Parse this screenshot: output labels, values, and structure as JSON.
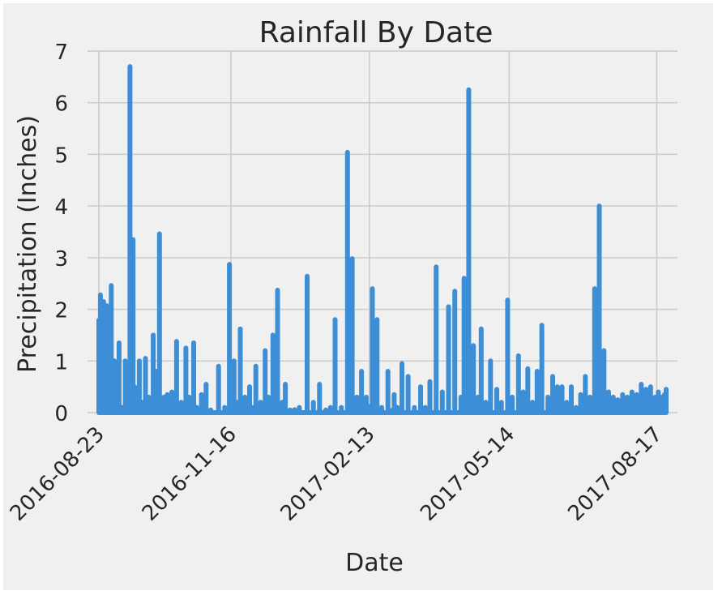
{
  "chart_data": {
    "type": "line",
    "title": "Rainfall By Date",
    "xlabel": "Date",
    "ylabel": "Precipitation (Inches)",
    "ylim": [
      0,
      7
    ],
    "xlim": [
      "2016-08-23",
      "2017-08-23"
    ],
    "yticks": [
      "0",
      "1",
      "2",
      "3",
      "4",
      "5",
      "6",
      "7"
    ],
    "xticks": [
      "2016-08-23",
      "2016-11-16",
      "2017-02-13",
      "2017-05-14",
      "2017-08-17"
    ],
    "grid": true,
    "legend": "none",
    "colors": {
      "line": "#3c8fd6",
      "background": "#f0f0f0",
      "grid": "#cbcbcb"
    },
    "x": [
      "2016-08-23",
      "2016-08-24",
      "2016-08-25",
      "2016-08-26",
      "2016-08-27",
      "2016-08-28",
      "2016-08-29",
      "2016-08-30",
      "2016-08-31",
      "2016-09-01",
      "2016-09-02",
      "2016-09-03",
      "2016-09-05",
      "2016-09-07",
      "2016-09-09",
      "2016-09-10",
      "2016-09-12",
      "2016-09-14",
      "2016-09-15",
      "2016-09-16",
      "2016-09-18",
      "2016-09-20",
      "2016-09-22",
      "2016-09-24",
      "2016-09-27",
      "2016-09-29",
      "2016-10-01",
      "2016-10-02",
      "2016-10-04",
      "2016-10-06",
      "2016-10-09",
      "2016-10-12",
      "2016-10-15",
      "2016-10-18",
      "2016-10-20",
      "2016-10-23",
      "2016-10-25",
      "2016-10-28",
      "2016-10-31",
      "2016-11-03",
      "2016-11-08",
      "2016-11-12",
      "2016-11-15",
      "2016-11-16",
      "2016-11-18",
      "2016-11-20",
      "2016-11-22",
      "2016-11-25",
      "2016-11-28",
      "2016-11-30",
      "2016-12-02",
      "2016-12-05",
      "2016-12-08",
      "2016-12-10",
      "2016-12-13",
      "2016-12-16",
      "2016-12-19",
      "2016-12-21",
      "2016-12-24",
      "2016-12-27",
      "2016-12-30",
      "2017-01-04",
      "2017-01-08",
      "2017-01-12",
      "2017-01-16",
      "2017-01-19",
      "2017-01-22",
      "2017-01-26",
      "2017-01-30",
      "2017-02-02",
      "2017-02-05",
      "2017-02-08",
      "2017-02-10",
      "2017-02-11",
      "2017-02-12",
      "2017-02-13",
      "2017-02-15",
      "2017-02-18",
      "2017-02-21",
      "2017-02-25",
      "2017-02-28",
      "2017-03-01",
      "2017-03-03",
      "2017-03-06",
      "2017-03-10",
      "2017-03-14",
      "2017-03-18",
      "2017-03-21",
      "2017-03-24",
      "2017-03-28",
      "2017-04-01",
      "2017-04-05",
      "2017-04-09",
      "2017-04-13",
      "2017-04-15",
      "2017-04-18",
      "2017-04-21",
      "2017-04-24",
      "2017-04-26",
      "2017-04-29",
      "2017-05-02",
      "2017-05-06",
      "2017-05-09",
      "2017-05-13",
      "2017-05-16",
      "2017-05-20",
      "2017-05-23",
      "2017-05-26",
      "2017-05-29",
      "2017-06-01",
      "2017-06-04",
      "2017-06-08",
      "2017-06-11",
      "2017-06-14",
      "2017-06-17",
      "2017-06-20",
      "2017-06-23",
      "2017-06-26",
      "2017-06-29",
      "2017-07-02",
      "2017-07-05",
      "2017-07-08",
      "2017-07-11",
      "2017-07-14",
      "2017-07-17",
      "2017-07-20",
      "2017-07-23",
      "2017-07-26",
      "2017-07-29",
      "2017-08-01",
      "2017-08-04",
      "2017-08-07",
      "2017-08-10",
      "2017-08-13",
      "2017-08-16",
      "2017-08-18",
      "2017-08-20",
      "2017-08-22",
      "2017-08-23"
    ],
    "values": [
      1.79,
      2.28,
      0.08,
      2.15,
      0.05,
      2.07,
      0.9,
      0.05,
      2.46,
      0.01,
      1.0,
      0.05,
      1.35,
      0.1,
      1.0,
      0.2,
      6.7,
      3.35,
      0.5,
      0.3,
      1.0,
      0.2,
      1.05,
      0.3,
      1.5,
      0.8,
      3.46,
      0.2,
      0.3,
      0.35,
      0.4,
      1.38,
      0.2,
      1.25,
      0.3,
      1.35,
      0.1,
      0.35,
      0.55,
      0.05,
      0.9,
      0.1,
      2.87,
      0.4,
      1.0,
      0.2,
      1.62,
      0.3,
      0.5,
      0.1,
      0.9,
      0.2,
      1.2,
      0.3,
      1.5,
      2.37,
      0.2,
      0.55,
      0.05,
      0.06,
      0.1,
      2.64,
      0.2,
      0.55,
      0.05,
      0.1,
      1.8,
      0.1,
      5.04,
      2.98,
      0.3,
      0.8,
      0.2,
      0.3,
      0.1,
      0.12,
      2.4,
      1.8,
      0.1,
      0.8,
      0.05,
      0.35,
      0.1,
      0.95,
      0.7,
      0.1,
      0.5,
      0.1,
      0.6,
      2.82,
      0.4,
      2.05,
      2.35,
      0.3,
      2.6,
      6.25,
      1.3,
      0.3,
      1.62,
      0.2,
      1.0,
      0.45,
      0.2,
      2.18,
      0.3,
      1.1,
      0.4,
      0.85,
      0.2,
      0.8,
      1.69,
      0.3,
      0.7,
      0.5,
      0.5,
      0.2,
      0.5,
      0.1,
      0.35,
      0.7,
      0.3,
      2.4,
      4.0,
      1.2,
      0.4,
      0.3,
      0.25,
      0.35,
      0.3,
      0.4,
      0.35,
      0.55,
      0.45,
      0.5,
      0.3,
      0.4,
      0.3,
      0.35,
      0.45
    ]
  }
}
